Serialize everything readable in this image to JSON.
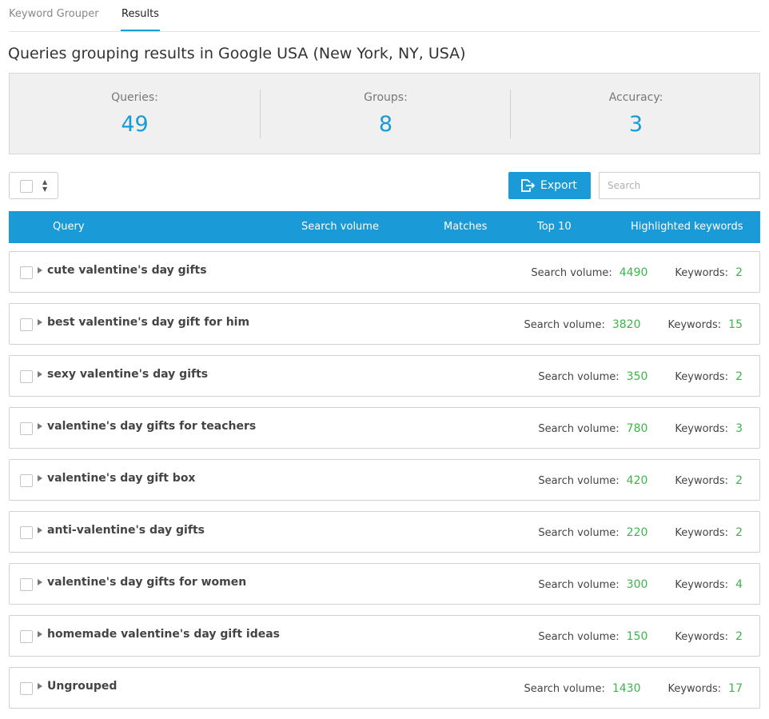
{
  "tabs": [
    {
      "label": "Keyword Grouper"
    },
    {
      "label": "Results"
    }
  ],
  "page_title": "Queries grouping results in Google USA (New York, NY, USA)",
  "stats": {
    "queries_label": "Queries:",
    "queries_value": "49",
    "groups_label": "Groups:",
    "groups_value": "8",
    "accuracy_label": "Accuracy:",
    "accuracy_value": "3"
  },
  "toolbar": {
    "export_label": "Export",
    "search_placeholder": "Search"
  },
  "table": {
    "headers": [
      "Query",
      "Search volume",
      "Matches",
      "Top 10",
      "Highlighted keywords"
    ],
    "sv_label": "Search volume:",
    "kw_label": "Keywords:",
    "rows": [
      {
        "query": "cute valentine's day gifts",
        "volume": "4490",
        "keywords": "2"
      },
      {
        "query": "best valentine's day gift for him",
        "volume": "3820",
        "keywords": "15"
      },
      {
        "query": "sexy valentine's day gifts",
        "volume": "350",
        "keywords": "2"
      },
      {
        "query": "valentine's day gifts for teachers",
        "volume": "780",
        "keywords": "3"
      },
      {
        "query": "valentine's day gift box",
        "volume": "420",
        "keywords": "2"
      },
      {
        "query": "anti-valentine's day gifts",
        "volume": "220",
        "keywords": "2"
      },
      {
        "query": "valentine's day gifts for women",
        "volume": "300",
        "keywords": "4"
      },
      {
        "query": "homemade valentine's day gift ideas",
        "volume": "150",
        "keywords": "2"
      },
      {
        "query": "Ungrouped",
        "volume": "1430",
        "keywords": "17"
      }
    ]
  },
  "colors": {
    "accent": "#1a9ad6",
    "positive": "#3cb54a"
  }
}
